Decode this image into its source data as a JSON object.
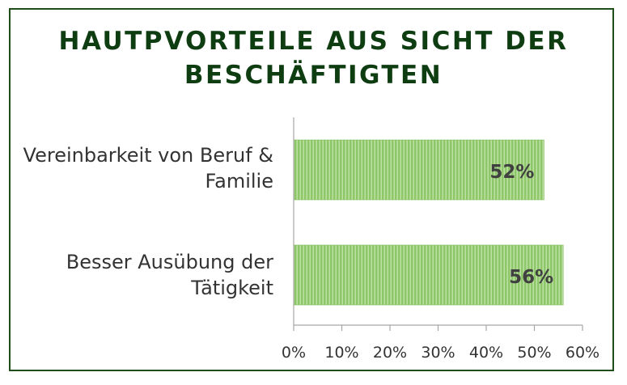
{
  "chart_data": {
    "type": "bar",
    "orientation": "horizontal",
    "title": "HAUTPVORTEILE AUS SICHT DER BESCHÄFTIGTEN",
    "title_lines": [
      "HAUTPVORTEILE AUS SICHT DER",
      "BESCHÄFTIGTEN"
    ],
    "categories": [
      "Vereinbarkeit von Beruf & Familie",
      "Besser Ausübung der Tätigkeit"
    ],
    "category_lines": [
      [
        "Vereinbarkeit von Beruf &",
        "Familie"
      ],
      [
        "Besser Ausübung der",
        "Tätigkeit"
      ]
    ],
    "values": [
      52,
      56
    ],
    "data_labels": [
      "52%",
      "56%"
    ],
    "xlim": [
      0,
      60
    ],
    "xticks": [
      "0%",
      "10%",
      "20%",
      "30%",
      "40%",
      "50%",
      "60%"
    ],
    "xlabel": "",
    "ylabel": "",
    "grid": false,
    "legend": "none",
    "colors": {
      "bar": "#8dc767",
      "bar_stripe": "#ffffff",
      "title": "#0f3d12",
      "frame": "#1f4e1a",
      "axis": "#a6a6a6",
      "text": "#333333",
      "data_label": "#404040"
    }
  }
}
